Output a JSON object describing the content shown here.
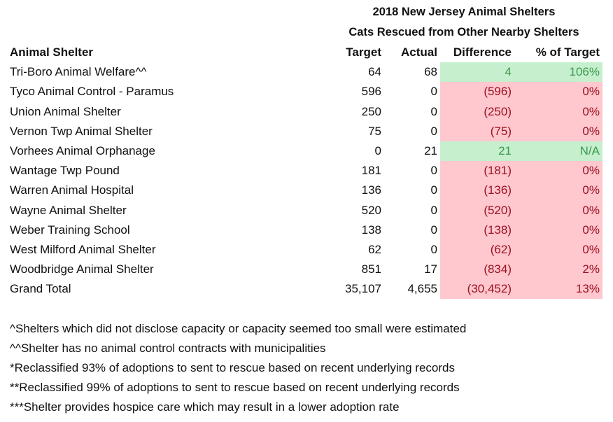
{
  "title": "2018 New Jersey Animal Shelters",
  "subtitle": "Cats Rescued from Other Nearby Shelters",
  "columns": [
    "Animal Shelter",
    "Target",
    "Actual",
    "Difference",
    "% of Target"
  ],
  "colors": {
    "positive_bg": "#c6efce",
    "positive_text": "#3a9a4f",
    "negative_bg": "#ffc7ce",
    "negative_text": "#9c1020"
  },
  "rows": [
    {
      "name": "Tri-Boro Animal Welfare^^",
      "target": "64",
      "actual": "68",
      "difference": "4",
      "pct": "106%",
      "status": "pos"
    },
    {
      "name": "Tyco Animal Control - Paramus",
      "target": "596",
      "actual": "0",
      "difference": "(596)",
      "pct": "0%",
      "status": "neg"
    },
    {
      "name": "Union Animal Shelter",
      "target": "250",
      "actual": "0",
      "difference": "(250)",
      "pct": "0%",
      "status": "neg"
    },
    {
      "name": "Vernon Twp Animal Shelter",
      "target": "75",
      "actual": "0",
      "difference": "(75)",
      "pct": "0%",
      "status": "neg"
    },
    {
      "name": "Vorhees Animal Orphanage",
      "target": "0",
      "actual": "21",
      "difference": "21",
      "pct": "N/A",
      "status": "pos"
    },
    {
      "name": "Wantage Twp Pound",
      "target": "181",
      "actual": "0",
      "difference": "(181)",
      "pct": "0%",
      "status": "neg"
    },
    {
      "name": "Warren Animal Hospital",
      "target": "136",
      "actual": "0",
      "difference": "(136)",
      "pct": "0%",
      "status": "neg"
    },
    {
      "name": "Wayne Animal Shelter",
      "target": "520",
      "actual": "0",
      "difference": "(520)",
      "pct": "0%",
      "status": "neg"
    },
    {
      "name": "Weber Training School",
      "target": "138",
      "actual": "0",
      "difference": "(138)",
      "pct": "0%",
      "status": "neg"
    },
    {
      "name": "West Milford Animal Shelter",
      "target": "62",
      "actual": "0",
      "difference": "(62)",
      "pct": "0%",
      "status": "neg"
    },
    {
      "name": "Woodbridge Animal Shelter",
      "target": "851",
      "actual": "17",
      "difference": "(834)",
      "pct": "2%",
      "status": "neg"
    },
    {
      "name": "Grand Total",
      "target": "35,107",
      "actual": "4,655",
      "difference": "(30,452)",
      "pct": "13%",
      "status": "neg"
    }
  ],
  "footnotes": [
    "^Shelters which did not disclose capacity or capacity seemed too small were estimated",
    "^^Shelter has no animal control contracts with municipalities",
    "*Reclassified 93% of adoptions to sent to rescue based on recent underlying records",
    "**Reclassified 99% of adoptions to sent to rescue based on recent underlying records",
    "***Shelter provides hospice care which may result in a lower adoption rate"
  ]
}
